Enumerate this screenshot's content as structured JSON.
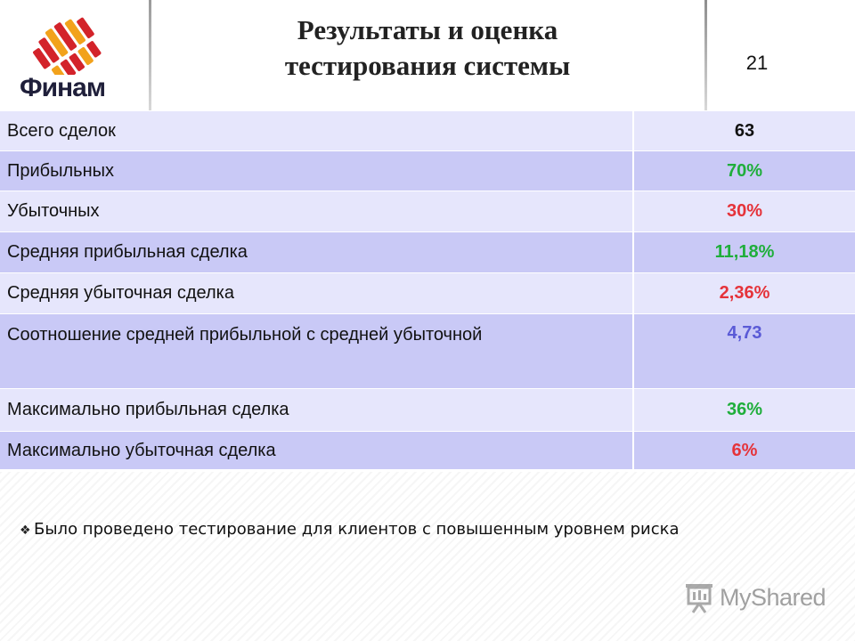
{
  "header": {
    "logo_text": "Финам",
    "title_line1": "Результаты и оценка",
    "title_line2": "тестирования системы",
    "page_number": "21"
  },
  "colors": {
    "row_light": "#e6e6fc",
    "row_dark": "#c9c9f6",
    "value_black": "#111111",
    "value_green": "#1fae3b",
    "value_red": "#e5333a",
    "value_blue": "#5a5ad6",
    "logo_red": "#d3232a",
    "logo_gold": "#f2a21c"
  },
  "table": {
    "rows": [
      {
        "label": "Всего сделок",
        "value": "63"
      },
      {
        "label": "Прибыльных",
        "value": "70%"
      },
      {
        "label": "Убыточных",
        "value": "30%"
      },
      {
        "label": "Средняя прибыльная сделка",
        "value": "11,18%"
      },
      {
        "label": "Средняя убыточная сделка",
        "value": "2,36%"
      },
      {
        "label": "Соотношение средней прибыльной с средней убыточной",
        "value": "4,73"
      },
      {
        "label": "Максимально прибыльная сделка",
        "value": "36%"
      },
      {
        "label": "Максимально убыточная сделка",
        "value": "6%"
      }
    ]
  },
  "note": {
    "bullet_icon": "diamond-bullet-icon",
    "text": "Было проведено тестирование для клиентов с повышенным уровнем риска"
  },
  "watermark": {
    "icon": "projector-screen-icon",
    "text": "MyShared"
  }
}
